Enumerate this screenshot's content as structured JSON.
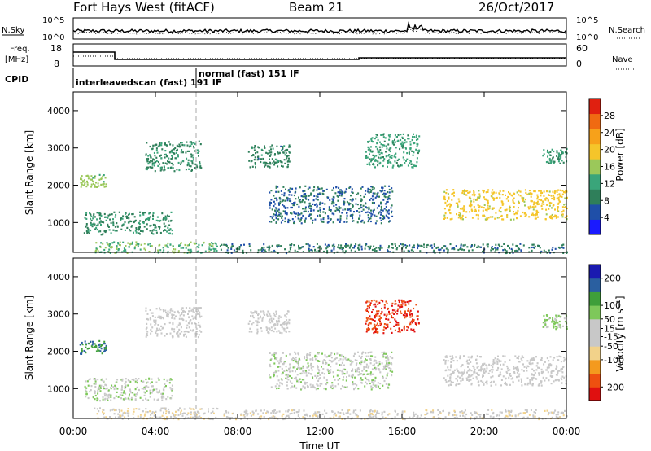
{
  "header": {
    "title": "Fort Hays West (fitACF)",
    "beam": "Beam 21",
    "date": "26/Oct/2017"
  },
  "top_panels": {
    "nsky_label": "N.Sky",
    "nsky_tick_top": "10^5",
    "nsky_tick_bottom": "10^0",
    "nsearch_label": "N.Search",
    "nsearch_tick_top": "10^5",
    "nsearch_tick_bottom": "10^0",
    "freq_label_1": "Freq.",
    "freq_label_2": "[MHz]",
    "freq_tick_top": "18",
    "freq_tick_bottom": "8",
    "nave_label": "Nave",
    "nave_tick_top": "60",
    "nave_tick_bottom": "0",
    "cpid_label": "CPID",
    "cpid_mode_1": "interleavedscan (fast) 191 IF",
    "cpid_mode_2": "normal (fast) 151 IF"
  },
  "colors": {
    "power_scale": [
      "#1a1aff",
      "#1f4fa8",
      "#2f7f5a",
      "#3aa57a",
      "#9bc85a",
      "#f5c52a",
      "#f7a11a",
      "#f06a12",
      "#e02010"
    ],
    "velocity_scale": [
      "#e01010",
      "#ee5010",
      "#f49a1e",
      "#f2d28a",
      "#c8c8c8",
      "#c8c8c8",
      "#7ec85a",
      "#3f9f3a",
      "#2a5fa0",
      "#1a1ab0"
    ]
  },
  "chart_data": [
    {
      "type": "heatmap",
      "name": "power-panel",
      "ylabel": "Slant Range [km]",
      "ylim": [
        200,
        4500
      ],
      "yticks": [
        "1000",
        "2000",
        "3000",
        "4000"
      ],
      "xlim_hours": [
        0,
        24
      ],
      "colorbar_label": "Power [dB]",
      "colorbar_ticks": [
        "4",
        "8",
        "12",
        "16",
        "20",
        "24",
        "28"
      ],
      "colorbar_range": [
        0,
        32
      ],
      "regions": [
        {
          "t": [
            0.3,
            1.6
          ],
          "r": [
            1950,
            2300
          ],
          "level": 16
        },
        {
          "t": [
            0.5,
            4.8
          ],
          "r": [
            700,
            1300
          ],
          "level": 10
        },
        {
          "t": [
            3.5,
            6.2
          ],
          "r": [
            2400,
            3200
          ],
          "level": 10
        },
        {
          "t": [
            8.5,
            10.5
          ],
          "r": [
            2500,
            3100
          ],
          "level": 9
        },
        {
          "t": [
            9.5,
            15.5
          ],
          "r": [
            1000,
            2000
          ],
          "level": 7
        },
        {
          "t": [
            14.2,
            16.8
          ],
          "r": [
            2500,
            3400
          ],
          "level": 12
        },
        {
          "t": [
            18.0,
            24.0
          ],
          "r": [
            1100,
            1900
          ],
          "level": 19
        },
        {
          "t": [
            1.0,
            7.0
          ],
          "r": [
            200,
            500
          ],
          "level": 14
        },
        {
          "t": [
            7.0,
            24.0
          ],
          "r": [
            200,
            450
          ],
          "level": 8
        },
        {
          "t": [
            22.8,
            24.0
          ],
          "r": [
            2600,
            3000
          ],
          "level": 11
        }
      ]
    },
    {
      "type": "heatmap",
      "name": "velocity-panel",
      "ylabel": "Slant Range [km]",
      "ylim": [
        200,
        4500
      ],
      "yticks": [
        "1000",
        "2000",
        "3000",
        "4000"
      ],
      "xlabel": "Time UT",
      "xticks": [
        "00:00",
        "04:00",
        "08:00",
        "12:00",
        "16:00",
        "20:00",
        "00:00"
      ],
      "xlim_hours": [
        0,
        24
      ],
      "colorbar_label": "Velocity [m s⁻¹]",
      "colorbar_ticks": [
        "-200",
        "-100",
        "-50",
        "-15",
        "15",
        "50",
        "100",
        "200"
      ],
      "colorbar_range": [
        -250,
        250
      ],
      "regions": [
        {
          "t": [
            0.3,
            1.6
          ],
          "r": [
            1950,
            2300
          ],
          "level": 150
        },
        {
          "t": [
            0.5,
            4.8
          ],
          "r": [
            700,
            1300
          ],
          "level": 40
        },
        {
          "t": [
            3.5,
            6.2
          ],
          "r": [
            2400,
            3200
          ],
          "level": 0
        },
        {
          "t": [
            8.5,
            10.5
          ],
          "r": [
            2500,
            3100
          ],
          "level": 0
        },
        {
          "t": [
            9.5,
            15.5
          ],
          "r": [
            1000,
            2000
          ],
          "level": 35
        },
        {
          "t": [
            14.2,
            16.8
          ],
          "r": [
            2500,
            3400
          ],
          "level": -200
        },
        {
          "t": [
            18.0,
            24.0
          ],
          "r": [
            1100,
            1900
          ],
          "level": 0
        },
        {
          "t": [
            1.0,
            7.0
          ],
          "r": [
            200,
            500
          ],
          "level": -40
        },
        {
          "t": [
            7.0,
            24.0
          ],
          "r": [
            200,
            450
          ],
          "level": -30
        },
        {
          "t": [
            22.8,
            24.0
          ],
          "r": [
            2600,
            3000
          ],
          "level": 60
        }
      ]
    }
  ]
}
